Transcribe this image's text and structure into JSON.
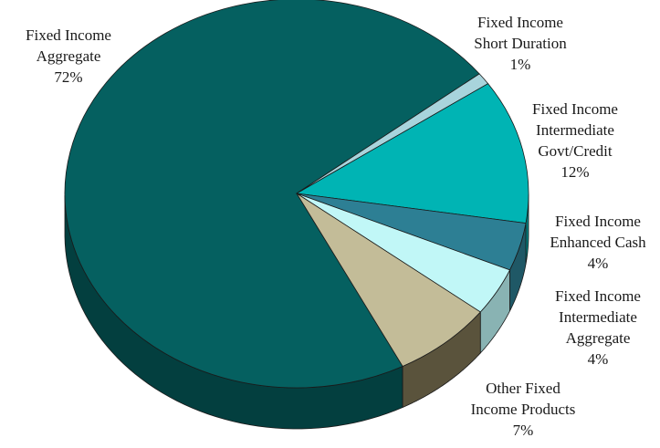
{
  "chart_data": {
    "type": "pie",
    "title": "",
    "style": "3d",
    "slices": [
      {
        "label_lines": [
          "Fixed Income",
          "Aggregate"
        ],
        "value_label": "72%",
        "value": 72,
        "color": "#056060",
        "side_color": "#033f3f"
      },
      {
        "label_lines": [
          "Fixed Income",
          "Short Duration"
        ],
        "value_label": "1%",
        "value": 1,
        "color": "#a8d4dc",
        "side_color": "#7fa3aa"
      },
      {
        "label_lines": [
          "Fixed Income",
          "Intermediate",
          "Govt/Credit"
        ],
        "value_label": "12%",
        "value": 12,
        "color": "#00b4b4",
        "side_color": "#008080"
      },
      {
        "label_lines": [
          "Fixed Income",
          "Enhanced Cash"
        ],
        "value_label": "4%",
        "value": 4,
        "color": "#2d7f94",
        "side_color": "#1f5866"
      },
      {
        "label_lines": [
          "Fixed Income",
          "Intermediate",
          "Aggregate"
        ],
        "value_label": "4%",
        "value": 4,
        "color": "#c1f7f7",
        "side_color": "#89b3b3"
      },
      {
        "label_lines": [
          "Other Fixed",
          "Income Products"
        ],
        "value_label": "7%",
        "value": 7,
        "color": "#c3bc98",
        "side_color": "#5a533c"
      }
    ]
  }
}
